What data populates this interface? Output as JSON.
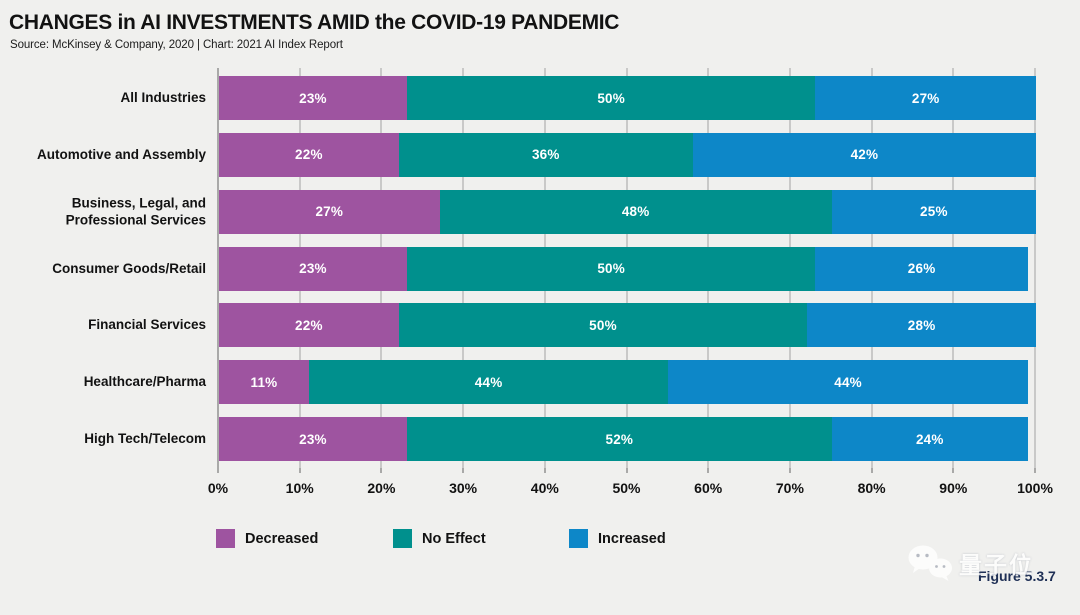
{
  "header": {
    "title": "CHANGES in AI INVESTMENTS AMID the COVID-19 PANDEMIC",
    "source": "Source: McKinsey & Company, 2020 | Chart: 2021 AI Index Report"
  },
  "chart_data": {
    "type": "bar",
    "stacked": true,
    "orientation": "horizontal",
    "title": "CHANGES in AI INVESTMENTS AMID the COVID-19 PANDEMIC",
    "categories": [
      "All Industries",
      "Automotive and Assembly",
      "Business, Legal, and Professional Services",
      "Consumer Goods/Retail",
      "Financial Services",
      "Healthcare/Pharma",
      "High Tech/Telecom"
    ],
    "series": [
      {
        "name": "Decreased",
        "color": "#9e54a0",
        "values": [
          23,
          22,
          27,
          23,
          22,
          11,
          23
        ]
      },
      {
        "name": "No Effect",
        "color": "#00908d",
        "values": [
          50,
          36,
          48,
          50,
          50,
          44,
          52
        ]
      },
      {
        "name": "Increased",
        "color": "#0d87c8",
        "values": [
          27,
          42,
          25,
          26,
          28,
          44,
          24
        ]
      }
    ],
    "value_suffix": "%",
    "xlim": [
      0,
      100
    ],
    "x_ticks": [
      "0%",
      "10%",
      "20%",
      "30%",
      "40%",
      "50%",
      "60%",
      "70%",
      "80%",
      "90%",
      "100%"
    ],
    "grid": true,
    "legend_position": "bottom"
  },
  "footer": {
    "figure_label": "Figure 5.3.7",
    "watermark_text": "量子位"
  }
}
